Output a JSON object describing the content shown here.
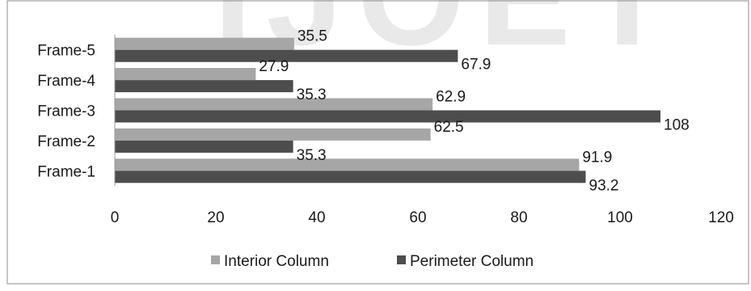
{
  "watermark": "IJOET",
  "colors": {
    "interior": "#a6a6a6",
    "perimeter": "#4d4d4d",
    "watermark": "#e9e9e9",
    "axis": "#9a9a9a",
    "frame": "#8c8c8c"
  },
  "chart_data": {
    "type": "bar",
    "orientation": "horizontal",
    "categories": [
      "Frame-1",
      "Frame-2",
      "Frame-3",
      "Frame-4",
      "Frame-5"
    ],
    "series": [
      {
        "name": "Interior Column",
        "values": [
          91.9,
          62.5,
          62.9,
          27.9,
          35.5
        ],
        "labels": [
          "91.9",
          "62.5",
          "62.9",
          "27.9",
          "35.5"
        ]
      },
      {
        "name": "Perimeter Column",
        "values": [
          93.2,
          35.3,
          108,
          35.3,
          67.9
        ],
        "labels": [
          "93.2",
          "35.3",
          "108",
          "35.3",
          "67.9"
        ]
      }
    ],
    "xlim": [
      0,
      120
    ],
    "xticks": [
      "0",
      "20",
      "40",
      "60",
      "80",
      "100",
      "120"
    ],
    "title": "",
    "xlabel": "",
    "ylabel": "",
    "grid": false,
    "legend": "bottom"
  }
}
